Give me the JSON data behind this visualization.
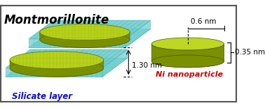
{
  "title": "Montmorillonite",
  "title_fontsize": 12,
  "title_color": "#000000",
  "bg_color": "#ffffff",
  "border_color": "#555555",
  "slab_color": "#70d0d0",
  "slab_edge_color": "#50b0b0",
  "slab_grid_color": "#40a0a0",
  "slab_alpha": 0.85,
  "disc_top_color": "#c0d820",
  "disc_side_color": "#7a9000",
  "disc_edge_color": "#556600",
  "disc_grid_color": "#88aa00",
  "ni_top_color": "#bcd820",
  "ni_side_color": "#7a9000",
  "ni_edge_color": "#445500",
  "silicate_label": "Silicate layer",
  "silicate_label_color": "#1010cc",
  "silicate_label_fontsize": 8.5,
  "ni_label": "Ni nanoparticle",
  "ni_label_color": "#cc0000",
  "ni_label_fontsize": 8,
  "dim_06": "0.6 nm",
  "dim_035": "0.35 nm",
  "dim_130": "1.30 nm",
  "dim_fontsize": 7.5
}
